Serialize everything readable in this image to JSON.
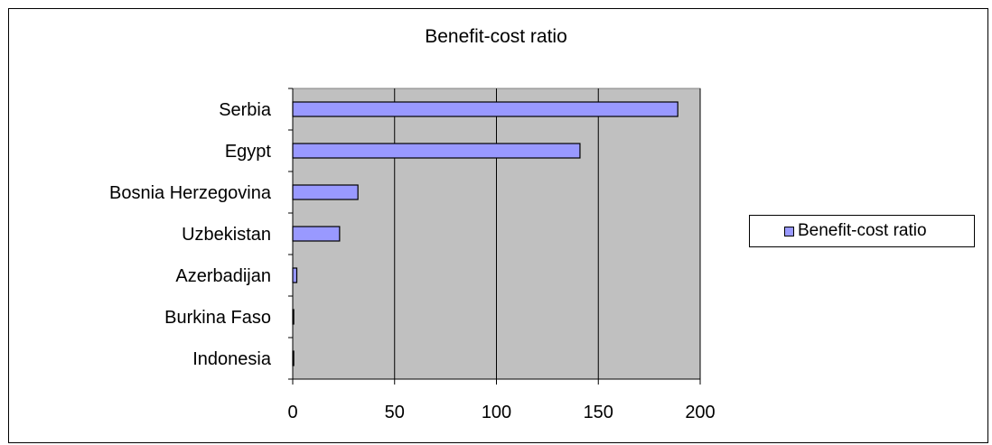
{
  "chart_data": {
    "type": "bar",
    "orientation": "horizontal",
    "title": "Benefit-cost ratio",
    "categories": [
      "Serbia",
      "Egypt",
      "Bosnia Herzegovina",
      "Uzbekistan",
      "Azerbadijan",
      "Burkina Faso",
      "Indonesia"
    ],
    "series": [
      {
        "name": "Benefit-cost ratio",
        "values": [
          189,
          141,
          32,
          23,
          2,
          0.5,
          0.5
        ]
      }
    ],
    "xlim": [
      0,
      200
    ],
    "xticks": [
      "0",
      "50",
      "100",
      "150",
      "200"
    ],
    "grid": "vertical",
    "legend_position": "right",
    "colors": {
      "bar_fill": "#9999ff",
      "plot_background": "#c0c0c0",
      "grid": "#000000"
    }
  }
}
